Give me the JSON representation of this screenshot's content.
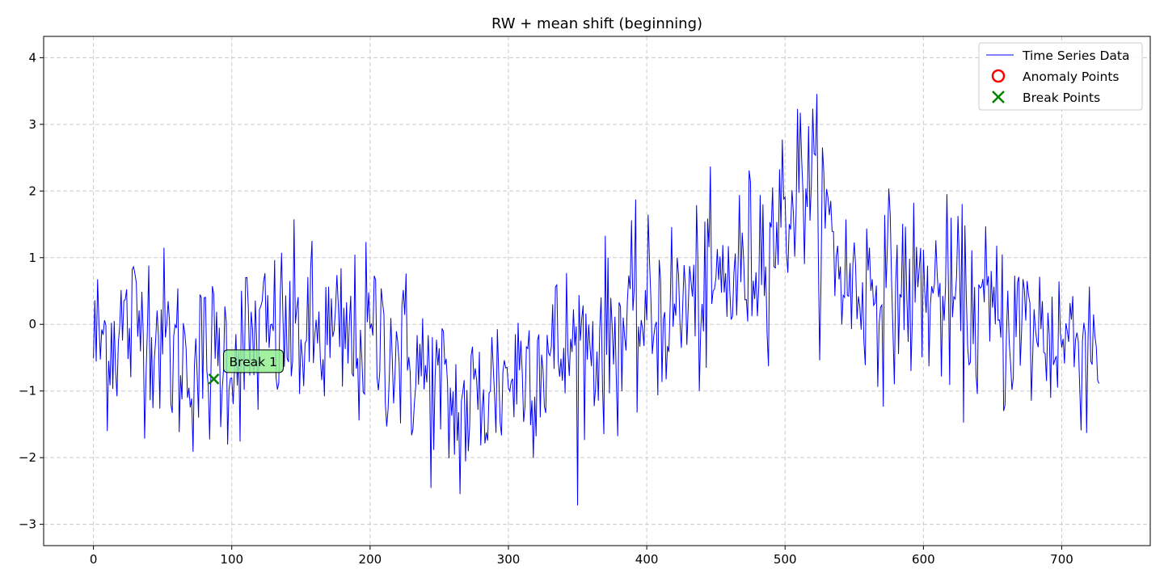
{
  "chart_data": {
    "type": "line",
    "title": "RW + mean shift (beginning)",
    "xlabel": "",
    "ylabel": "",
    "xlim": [
      -36,
      764
    ],
    "ylim": [
      -3.32,
      4.32
    ],
    "x_ticks": [
      0,
      100,
      200,
      300,
      400,
      500,
      600,
      700
    ],
    "y_ticks": [
      -3,
      -2,
      -1,
      0,
      1,
      2,
      3,
      4
    ],
    "x_tick_labels": [
      "0",
      "100",
      "200",
      "300",
      "400",
      "500",
      "600",
      "700"
    ],
    "y_tick_labels": [
      "−3",
      "−2",
      "−1",
      "0",
      "1",
      "2",
      "3",
      "4"
    ],
    "grid": true,
    "legend_position": "top-right",
    "colors": {
      "series": "#0000ff",
      "anomaly": "#ff0000",
      "break": "#008000",
      "annotation_fill": "#90ee90",
      "grid": "#cccccc"
    },
    "series": [
      {
        "name": "Time Series Data",
        "level_points": [
          [
            0,
            -0.3
          ],
          [
            40,
            0.1
          ],
          [
            60,
            -0.5
          ],
          [
            80,
            -0.6
          ],
          [
            100,
            -0.4
          ],
          [
            140,
            -0.1
          ],
          [
            180,
            -0.3
          ],
          [
            210,
            -0.2
          ],
          [
            240,
            -0.8
          ],
          [
            265,
            -1.4
          ],
          [
            290,
            -0.9
          ],
          [
            320,
            -0.5
          ],
          [
            360,
            -0.3
          ],
          [
            400,
            0.1
          ],
          [
            440,
            0.4
          ],
          [
            470,
            0.8
          ],
          [
            500,
            1.7
          ],
          [
            515,
            2.3
          ],
          [
            530,
            1.5
          ],
          [
            545,
            0.6
          ],
          [
            600,
            0.5
          ],
          [
            650,
            0.1
          ],
          [
            700,
            -0.2
          ],
          [
            727,
            -0.2
          ]
        ],
        "noise_amplitude": 0.85,
        "length": 728
      },
      {
        "name": "Anomaly Points",
        "points": []
      },
      {
        "name": "Break Points",
        "points": [
          [
            87,
            -0.82
          ]
        ]
      }
    ],
    "legend": [
      "Time Series Data",
      "Anomaly Points",
      "Break Points"
    ],
    "annotations": [
      {
        "text": "Break 1",
        "x": 87,
        "y": -0.82
      }
    ]
  }
}
